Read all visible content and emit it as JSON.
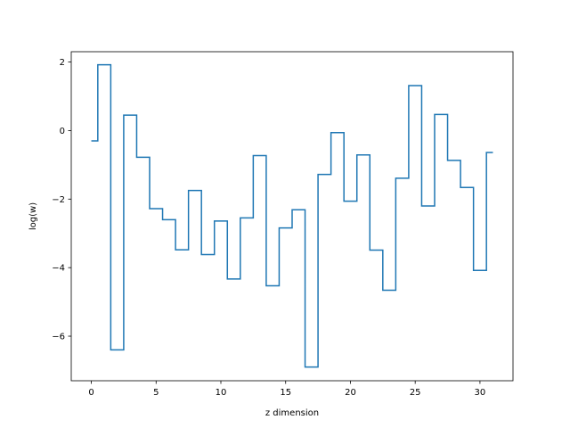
{
  "chart_data": {
    "type": "line",
    "drawstyle": "steps-mid",
    "title": "",
    "xlabel": "z dimension",
    "ylabel": "log(w)",
    "xlim": [
      -1.55,
      32.55
    ],
    "ylim": [
      -7.3,
      2.3
    ],
    "xticks": [
      0,
      5,
      10,
      15,
      20,
      25,
      30
    ],
    "yticks": [
      -6,
      -4,
      -2,
      0,
      2
    ],
    "grid": false,
    "colors": {
      "line": "#1f77b4",
      "axes": "#000000",
      "background": "#ffffff"
    },
    "series": [
      {
        "x": [
          0,
          1,
          2,
          3,
          4,
          5,
          6,
          7,
          8,
          9,
          10,
          11,
          12,
          13,
          14,
          15,
          16,
          17,
          18,
          19,
          20,
          21,
          22,
          23,
          24,
          25,
          26,
          27,
          28,
          29,
          30,
          31
        ],
        "y": [
          -0.3,
          1.92,
          -6.4,
          0.45,
          -0.78,
          -2.28,
          -2.6,
          -3.48,
          -1.75,
          -3.62,
          -2.64,
          -4.33,
          -2.55,
          -0.73,
          -4.53,
          -2.84,
          -2.31,
          -6.9,
          -1.28,
          -0.06,
          -2.06,
          -0.71,
          -3.49,
          -4.66,
          -1.39,
          1.31,
          -2.2,
          0.47,
          -0.87,
          -1.66,
          -4.08,
          -0.64
        ]
      }
    ]
  }
}
